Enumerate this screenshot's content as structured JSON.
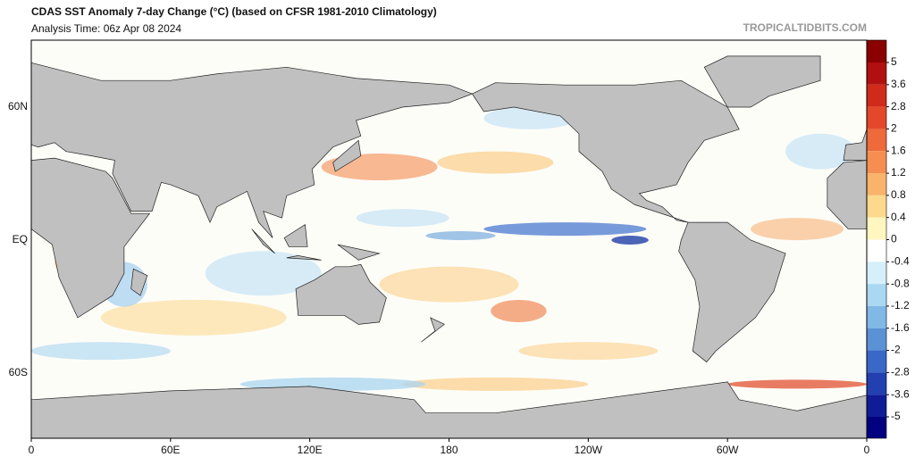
{
  "header": {
    "title": "CDAS SST Anomaly 7-day Change (°C) (based on CFSR 1981-2010 Climatology)",
    "subtitle": "Analysis Time: 06z Apr 08 2024",
    "watermark": "TROPICALTIDBITS.COM"
  },
  "map": {
    "lat_labels": [
      {
        "lat": 60,
        "label": "60N"
      },
      {
        "lat": 0,
        "label": "EQ"
      },
      {
        "lat": -60,
        "label": "60S"
      }
    ],
    "lon_labels": [
      {
        "lon": 0,
        "label": "0"
      },
      {
        "lon": 60,
        "label": "60E"
      },
      {
        "lon": 120,
        "label": "120E"
      },
      {
        "lon": 180,
        "label": "180"
      },
      {
        "lon": 240,
        "label": "120W"
      },
      {
        "lon": 300,
        "label": "60W"
      },
      {
        "lon": 360,
        "label": "0"
      }
    ]
  },
  "colorbar": {
    "ticks": [
      5,
      3.6,
      2.8,
      2,
      1.6,
      1.2,
      0.8,
      0.4,
      0,
      -0.4,
      -0.8,
      -1.2,
      -1.6,
      -2,
      -2.8,
      -3.6,
      -5
    ],
    "colors": [
      "#8b0000",
      "#b01010",
      "#d02a1a",
      "#e3482a",
      "#ee6a3a",
      "#f58e50",
      "#f9b36a",
      "#fcd98c",
      "#fff6c0",
      "#ffffff",
      "#d6f0fb",
      "#aad8f2",
      "#80b8e6",
      "#5b92d6",
      "#3a68c6",
      "#2340b0",
      "#101c96",
      "#000080"
    ]
  }
}
